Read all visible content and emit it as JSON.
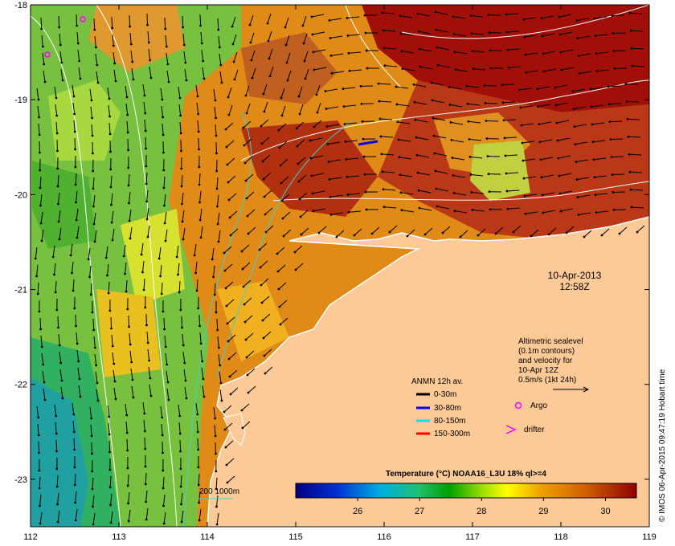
{
  "axes": {
    "x_ticks": [
      "112",
      "113",
      "114",
      "115",
      "116",
      "117",
      "118",
      "119"
    ],
    "y_ticks": [
      "-18",
      "-19",
      "-20",
      "-21",
      "-22",
      "-23"
    ],
    "lon_range": [
      112,
      119
    ],
    "lat_range": [
      -23.5,
      -18
    ]
  },
  "date_label": {
    "date": "10-Apr-2013",
    "time": "12:58Z"
  },
  "altimetry_note": {
    "lines": [
      "Altimetric sealevel",
      "(0.1m contours)",
      "and velocity for",
      "10-Apr 12Z",
      "0.5m/s (1kt 24h)"
    ]
  },
  "legend": {
    "title": "ANMN 12h av.",
    "items": [
      {
        "label": "0-30m",
        "color": "#000000"
      },
      {
        "label": "30-80m",
        "color": "#0000ff"
      },
      {
        "label": "80-150m",
        "color": "#00e5e5"
      },
      {
        "label": "150-300m",
        "color": "#ff0000"
      }
    ],
    "argo_label": "Argo",
    "drifter_label": "drifter",
    "argo_color": "#ff00ff"
  },
  "bathy_label": "200  1000m",
  "colorbar": {
    "title": "Temperature (°C) NOAA16_L3U 18% ql>=4",
    "ticks": [
      "26",
      "27",
      "28",
      "29",
      "30"
    ],
    "range": [
      25,
      30.5
    ]
  },
  "credit": "© IMOS 06-Apr-2015 09:47:19 Hobart time",
  "colors": {
    "land": "#fdc997",
    "background": "#ffffff"
  }
}
